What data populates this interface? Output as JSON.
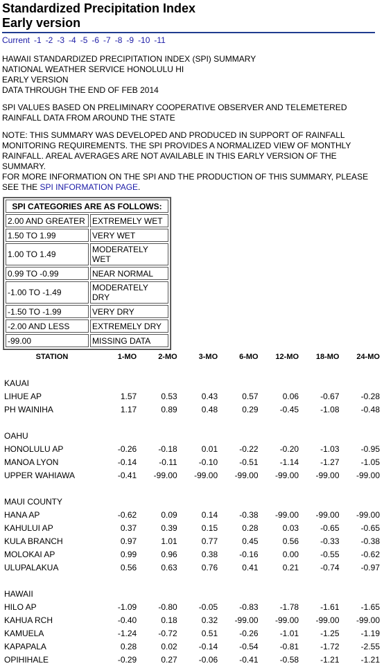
{
  "header": {
    "title_line1": "Standardized Precipitation Index",
    "title_line2": "Early version",
    "nav": [
      "Current",
      "-1",
      "-2",
      "-3",
      "-4",
      "-5",
      "-6",
      "-7",
      "-8",
      "-9",
      "-10",
      "-11"
    ]
  },
  "summary": {
    "lines": [
      "HAWAII STANDARDIZED PRECIPITATION INDEX (SPI) SUMMARY",
      "NATIONAL WEATHER SERVICE HONOLULU HI",
      "EARLY VERSION",
      "DATA THROUGH THE END OF FEB 2014"
    ],
    "basis": [
      "SPI VALUES BASED ON PRELIMINARY COOPERATIVE OBSERVER AND TELEMETERED",
      "RAINFALL DATA FROM AROUND THE STATE"
    ],
    "note": [
      "NOTE: THIS SUMMARY WAS DEVELOPED AND PRODUCED IN SUPPORT OF RAINFALL",
      "MONITORING REQUIREMENTS. THE SPI PROVIDES A NORMALIZED VIEW OF MONTHLY",
      "RAINFALL. AREAL AVERAGES ARE NOT AVAILABLE IN THIS EARLY VERSION OF THE SUMMARY.",
      "FOR MORE INFORMATION ON THE SPI AND THE PRODUCTION OF THIS SUMMARY, PLEASE"
    ],
    "note_last_prefix": "SEE THE ",
    "note_link": "SPI INFORMATION PAGE",
    "note_last_suffix": "."
  },
  "categories": {
    "title": "SPI CATEGORIES ARE AS FOLLOWS:",
    "rows": [
      {
        "range": "2.00 AND GREATER",
        "label": "EXTREMELY WET"
      },
      {
        "range": "1.50 TO 1.99",
        "label": "VERY WET"
      },
      {
        "range": "1.00 TO 1.49",
        "label": "MODERATELY WET"
      },
      {
        "range": "0.99 TO -0.99",
        "label": "NEAR NORMAL"
      },
      {
        "range": "-1.00 TO -1.49",
        "label": "MODERATELY DRY"
      },
      {
        "range": "-1.50 TO -1.99",
        "label": "VERY DRY"
      },
      {
        "range": "-2.00 AND LESS",
        "label": "EXTREMELY DRY"
      },
      {
        "range": "-99.00",
        "label": "MISSING DATA"
      }
    ]
  },
  "table": {
    "columns": [
      "STATION",
      "1-MO",
      "2-MO",
      "3-MO",
      "6-MO",
      "12-MO",
      "18-MO",
      "24-MO"
    ],
    "groups": [
      {
        "name": "KAUAI",
        "rows": [
          [
            "LIHUE AP",
            "1.57",
            "0.53",
            "0.43",
            "0.57",
            "0.06",
            "-0.67",
            "-0.28"
          ],
          [
            "PH WAINIHA",
            "1.17",
            "0.89",
            "0.48",
            "0.29",
            "-0.45",
            "-1.08",
            "-0.48"
          ]
        ]
      },
      {
        "name": "OAHU",
        "rows": [
          [
            "HONOLULU AP",
            "-0.26",
            "-0.18",
            "0.01",
            "-0.22",
            "-0.20",
            "-1.03",
            "-0.95"
          ],
          [
            "MANOA LYON",
            "-0.14",
            "-0.11",
            "-0.10",
            "-0.51",
            "-1.14",
            "-1.27",
            "-1.05"
          ],
          [
            "UPPER WAHIAWA",
            "-0.41",
            "-99.00",
            "-99.00",
            "-99.00",
            "-99.00",
            "-99.00",
            "-99.00"
          ]
        ]
      },
      {
        "name": "MAUI COUNTY",
        "rows": [
          [
            "HANA AP",
            "-0.62",
            "0.09",
            "0.14",
            "-0.38",
            "-99.00",
            "-99.00",
            "-99.00"
          ],
          [
            "KAHULUI AP",
            "0.37",
            "0.39",
            "0.15",
            "0.28",
            "0.03",
            "-0.65",
            "-0.65"
          ],
          [
            "KULA BRANCH",
            "0.97",
            "1.01",
            "0.77",
            "0.45",
            "0.56",
            "-0.33",
            "-0.38"
          ],
          [
            "MOLOKAI AP",
            "0.99",
            "0.96",
            "0.38",
            "-0.16",
            "0.00",
            "-0.55",
            "-0.62"
          ],
          [
            "ULUPALAKUA",
            "0.56",
            "0.63",
            "0.76",
            "0.41",
            "0.21",
            "-0.74",
            "-0.97"
          ]
        ]
      },
      {
        "name": "HAWAII",
        "rows": [
          [
            "HILO AP",
            "-1.09",
            "-0.80",
            "-0.05",
            "-0.83",
            "-1.78",
            "-1.61",
            "-1.65"
          ],
          [
            "KAHUA RCH",
            "-0.40",
            "0.18",
            "0.32",
            "-99.00",
            "-99.00",
            "-99.00",
            "-99.00"
          ],
          [
            "KAMUELA",
            "-1.24",
            "-0.72",
            "0.51",
            "-0.26",
            "-1.01",
            "-1.25",
            "-1.19"
          ],
          [
            "KAPAPALA",
            "0.28",
            "0.02",
            "-0.14",
            "-0.54",
            "-0.81",
            "-1.72",
            "-2.55"
          ],
          [
            "OPIHIHALE",
            "-0.29",
            "0.27",
            "-0.06",
            "-0.41",
            "-0.58",
            "-1.21",
            "-1.21"
          ]
        ]
      }
    ]
  }
}
